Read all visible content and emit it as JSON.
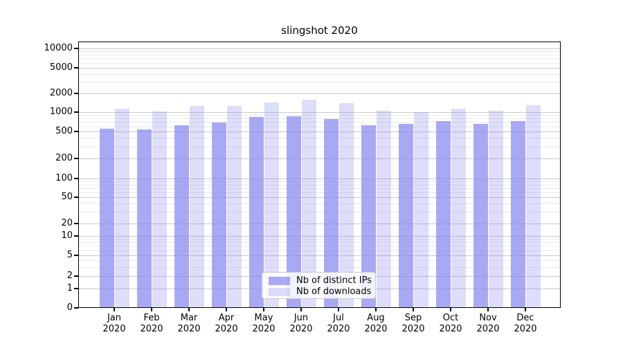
{
  "chart_data": {
    "type": "bar",
    "title": "slingshot 2020",
    "categories": [
      "Jan 2020",
      "Feb 2020",
      "Mar 2020",
      "Apr 2020",
      "May 2020",
      "Jun 2020",
      "Jul 2020",
      "Aug 2020",
      "Sep 2020",
      "Oct 2020",
      "Nov 2020",
      "Dec 2020"
    ],
    "series": [
      {
        "name": "Nb of distinct IPs",
        "color": "rgba(136,136,238,0.72)",
        "values": [
          550,
          540,
          630,
          690,
          850,
          870,
          780,
          630,
          650,
          720,
          660,
          720
        ]
      },
      {
        "name": "Nb of downloads",
        "color": "rgba(136,136,238,0.28)",
        "values": [
          1150,
          1020,
          1260,
          1250,
          1450,
          1600,
          1400,
          1050,
          1000,
          1130,
          1050,
          1290
        ]
      }
    ],
    "xlabel": "",
    "ylabel": "",
    "yscale": "symlog",
    "y_ticks": [
      0,
      1,
      2,
      5,
      10,
      20,
      50,
      100,
      200,
      500,
      1000,
      2000,
      5000,
      10000
    ],
    "minor_grid_multiples": [
      3,
      4,
      6,
      7,
      8,
      9
    ],
    "ylim": [
      0,
      13000
    ],
    "grid": "horizontal major and minor",
    "legend_position": "lower center",
    "colors": {
      "grid_major": "#c9c9c9",
      "grid_minor": "#eaeaea",
      "spine": "#000000",
      "text": "#000000",
      "background": "#ffffff"
    }
  }
}
